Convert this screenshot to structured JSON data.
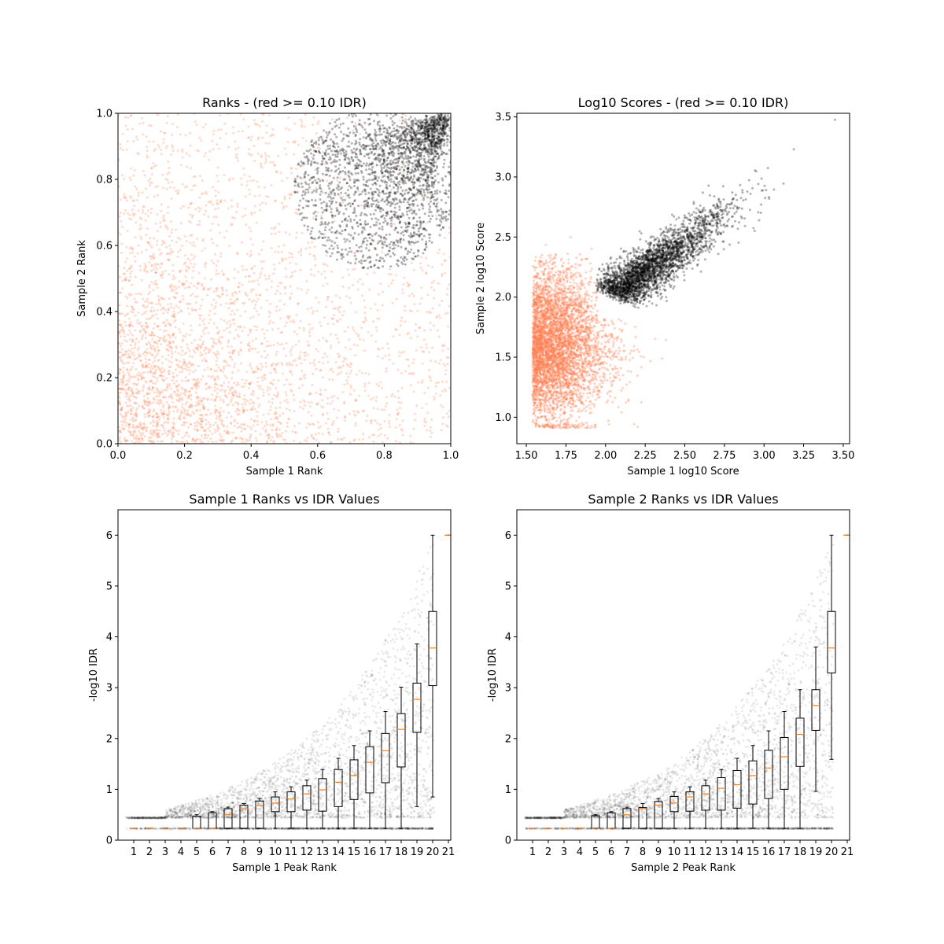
{
  "chart_data": [
    {
      "type": "scatter",
      "title": "Ranks - (red >= 0.10 IDR)",
      "xlabel": "Sample 1 Rank",
      "ylabel": "Sample 2 Rank",
      "xlim": [
        0,
        1
      ],
      "ylim": [
        0,
        1
      ],
      "xticks": [
        "0.0",
        "0.2",
        "0.4",
        "0.6",
        "0.8",
        "1.0"
      ],
      "yticks": [
        "0.0",
        "0.2",
        "0.4",
        "0.6",
        "0.8",
        "1.0"
      ],
      "grid": false,
      "series_colors": {
        "idr_above_threshold": "#FF7F50",
        "idr_below_threshold": "#000000"
      }
    },
    {
      "type": "scatter",
      "title": "Log10 Scores - (red >= 0.10 IDR)",
      "xlabel": "Sample 1 log10 Score",
      "ylabel": "Sample 2 log10 Score",
      "xlim": [
        1.44,
        3.54
      ],
      "ylim": [
        0.78,
        3.53
      ],
      "xticks": [
        "1.50",
        "1.75",
        "2.00",
        "2.25",
        "2.50",
        "2.75",
        "3.00",
        "3.25",
        "3.50"
      ],
      "yticks": [
        "1.0",
        "1.5",
        "2.0",
        "2.5",
        "3.0",
        "3.5"
      ],
      "grid": false,
      "series_colors": {
        "idr_above_threshold": "#FF7F50",
        "idr_below_threshold": "#000000"
      }
    },
    {
      "type": "box",
      "title": "Sample 1 Ranks vs IDR Values",
      "xlabel": "Sample 1 Peak Rank",
      "ylabel": "-log10 IDR",
      "xlim": [
        0,
        21.15
      ],
      "ylim": [
        0,
        6.5
      ],
      "xticks": [
        "1",
        "2",
        "3",
        "4",
        "5",
        "6",
        "7",
        "8",
        "9",
        "10",
        "11",
        "12",
        "13",
        "14",
        "15",
        "16",
        "17",
        "18",
        "19",
        "20",
        "21"
      ],
      "yticks": [
        "0",
        "1",
        "2",
        "3",
        "4",
        "5",
        "6"
      ],
      "grid": false,
      "median_color": "#FF7F0E",
      "boxes": [
        {
          "pos": 1,
          "low": 0.23,
          "q1": 0.23,
          "median": 0.23,
          "q3": 0.23,
          "high": 0.23
        },
        {
          "pos": 2,
          "low": 0.23,
          "q1": 0.23,
          "median": 0.23,
          "q3": 0.23,
          "high": 0.23
        },
        {
          "pos": 3,
          "low": 0.23,
          "q1": 0.23,
          "median": 0.23,
          "q3": 0.23,
          "high": 0.23
        },
        {
          "pos": 4,
          "low": 0.23,
          "q1": 0.23,
          "median": 0.23,
          "q3": 0.23,
          "high": 0.23
        },
        {
          "pos": 5,
          "low": 0.23,
          "q1": 0.23,
          "median": 0.23,
          "q3": 0.47,
          "high": 0.5
        },
        {
          "pos": 6,
          "low": 0.23,
          "q1": 0.23,
          "median": 0.23,
          "q3": 0.54,
          "high": 0.56
        },
        {
          "pos": 7,
          "low": 0.23,
          "q1": 0.23,
          "median": 0.5,
          "q3": 0.62,
          "high": 0.65
        },
        {
          "pos": 8,
          "low": 0.23,
          "q1": 0.23,
          "median": 0.62,
          "q3": 0.69,
          "high": 0.72
        },
        {
          "pos": 9,
          "low": 0.23,
          "q1": 0.23,
          "median": 0.68,
          "q3": 0.77,
          "high": 0.82
        },
        {
          "pos": 10,
          "low": 0.23,
          "q1": 0.56,
          "median": 0.73,
          "q3": 0.85,
          "high": 0.95
        },
        {
          "pos": 11,
          "low": 0.23,
          "q1": 0.56,
          "median": 0.81,
          "q3": 0.95,
          "high": 1.05
        },
        {
          "pos": 12,
          "low": 0.23,
          "q1": 0.59,
          "median": 0.91,
          "q3": 1.07,
          "high": 1.18
        },
        {
          "pos": 13,
          "low": 0.23,
          "q1": 0.57,
          "median": 0.99,
          "q3": 1.21,
          "high": 1.39
        },
        {
          "pos": 14,
          "low": 0.23,
          "q1": 0.66,
          "median": 1.14,
          "q3": 1.39,
          "high": 1.61
        },
        {
          "pos": 15,
          "low": 0.23,
          "q1": 0.8,
          "median": 1.27,
          "q3": 1.58,
          "high": 1.86
        },
        {
          "pos": 16,
          "low": 0.23,
          "q1": 0.93,
          "median": 1.53,
          "q3": 1.84,
          "high": 2.15
        },
        {
          "pos": 17,
          "low": 0.23,
          "q1": 1.13,
          "median": 1.76,
          "q3": 2.1,
          "high": 2.53
        },
        {
          "pos": 18,
          "low": 0.23,
          "q1": 1.44,
          "median": 2.18,
          "q3": 2.49,
          "high": 3.01
        },
        {
          "pos": 19,
          "low": 0.66,
          "q1": 2.12,
          "median": 2.77,
          "q3": 3.09,
          "high": 3.86
        },
        {
          "pos": 20,
          "low": 0.85,
          "q1": 3.04,
          "median": 3.78,
          "q3": 4.5,
          "high": 6.0
        },
        {
          "pos": 21,
          "low": 6.0,
          "q1": 6.0,
          "median": 6.0,
          "q3": 6.0,
          "high": 6.0
        }
      ]
    },
    {
      "type": "box",
      "title": "Sample 2 Ranks vs IDR Values",
      "xlabel": "Sample 2 Peak Rank",
      "ylabel": "-log10 IDR",
      "xlim": [
        0,
        21.15
      ],
      "ylim": [
        0,
        6.5
      ],
      "xticks": [
        "1",
        "2",
        "3",
        "4",
        "5",
        "6",
        "7",
        "8",
        "9",
        "10",
        "11",
        "12",
        "13",
        "14",
        "15",
        "16",
        "17",
        "18",
        "19",
        "20",
        "21"
      ],
      "yticks": [
        "0",
        "1",
        "2",
        "3",
        "4",
        "5",
        "6"
      ],
      "grid": false,
      "median_color": "#FF7F0E",
      "boxes": [
        {
          "pos": 1,
          "low": 0.23,
          "q1": 0.23,
          "median": 0.23,
          "q3": 0.23,
          "high": 0.23
        },
        {
          "pos": 2,
          "low": 0.23,
          "q1": 0.23,
          "median": 0.23,
          "q3": 0.23,
          "high": 0.23
        },
        {
          "pos": 3,
          "low": 0.23,
          "q1": 0.23,
          "median": 0.23,
          "q3": 0.23,
          "high": 0.23
        },
        {
          "pos": 4,
          "low": 0.23,
          "q1": 0.23,
          "median": 0.23,
          "q3": 0.23,
          "high": 0.23
        },
        {
          "pos": 5,
          "low": 0.23,
          "q1": 0.23,
          "median": 0.23,
          "q3": 0.48,
          "high": 0.5
        },
        {
          "pos": 6,
          "low": 0.23,
          "q1": 0.23,
          "median": 0.23,
          "q3": 0.54,
          "high": 0.56
        },
        {
          "pos": 7,
          "low": 0.23,
          "q1": 0.23,
          "median": 0.5,
          "q3": 0.62,
          "high": 0.65
        },
        {
          "pos": 8,
          "low": 0.23,
          "q1": 0.23,
          "median": 0.62,
          "q3": 0.64,
          "high": 0.72
        },
        {
          "pos": 9,
          "low": 0.23,
          "q1": 0.23,
          "median": 0.69,
          "q3": 0.76,
          "high": 0.82
        },
        {
          "pos": 10,
          "low": 0.23,
          "q1": 0.56,
          "median": 0.73,
          "q3": 0.86,
          "high": 0.95
        },
        {
          "pos": 11,
          "low": 0.23,
          "q1": 0.57,
          "median": 0.85,
          "q3": 0.95,
          "high": 1.05
        },
        {
          "pos": 12,
          "low": 0.23,
          "q1": 0.59,
          "median": 0.91,
          "q3": 1.07,
          "high": 1.18
        },
        {
          "pos": 13,
          "low": 0.23,
          "q1": 0.59,
          "median": 1.02,
          "q3": 1.23,
          "high": 1.39
        },
        {
          "pos": 14,
          "low": 0.23,
          "q1": 0.63,
          "median": 1.09,
          "q3": 1.37,
          "high": 1.61
        },
        {
          "pos": 15,
          "low": 0.23,
          "q1": 0.71,
          "median": 1.27,
          "q3": 1.56,
          "high": 1.86
        },
        {
          "pos": 16,
          "low": 0.23,
          "q1": 0.82,
          "median": 1.42,
          "q3": 1.77,
          "high": 2.15
        },
        {
          "pos": 17,
          "low": 0.23,
          "q1": 1.0,
          "median": 1.64,
          "q3": 2.02,
          "high": 2.53
        },
        {
          "pos": 18,
          "low": 0.23,
          "q1": 1.45,
          "median": 2.08,
          "q3": 2.4,
          "high": 2.96
        },
        {
          "pos": 19,
          "low": 0.96,
          "q1": 2.16,
          "median": 2.65,
          "q3": 2.96,
          "high": 3.8
        },
        {
          "pos": 20,
          "low": 1.59,
          "q1": 3.29,
          "median": 3.78,
          "q3": 4.5,
          "high": 6.0
        },
        {
          "pos": 21,
          "low": 6.0,
          "q1": 6.0,
          "median": 6.0,
          "q3": 6.0,
          "high": 6.0
        }
      ]
    }
  ]
}
